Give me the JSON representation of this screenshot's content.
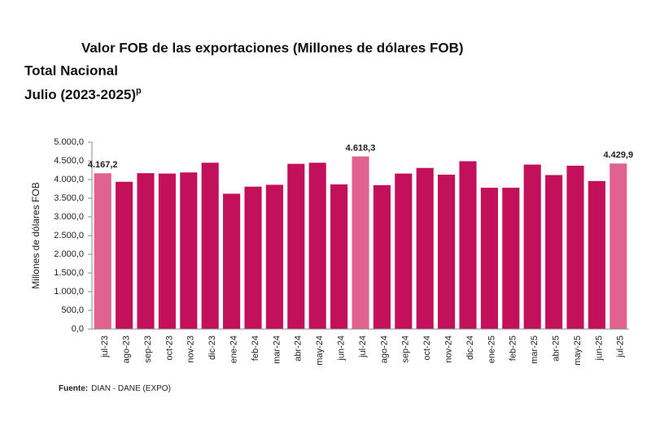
{
  "chart_data": {
    "type": "bar",
    "title": "Valor FOB de las exportaciones (Millones de dólares FOB)",
    "subtitle": "Total Nacional",
    "period": "Julio (2023-2025)",
    "period_note": "p",
    "y_label": "Millones de dólares FOB",
    "source_label": "Fuente:",
    "source": "DIAN - DANE (EXPO)",
    "categories": [
      "jul-23",
      "ago-23",
      "sep-23",
      "oct-23",
      "nov-23",
      "dic-23",
      "ene-24",
      "feb-24",
      "mar-24",
      "abr-24",
      "may-24",
      "jun-24",
      "jul-24",
      "ago-24",
      "sep-24",
      "oct-24",
      "nov-24",
      "dic-24",
      "ene-25",
      "feb-25",
      "mar-25",
      "abr-25",
      "may-25",
      "jun-25",
      "jul-25"
    ],
    "values": [
      4167.2,
      3940,
      4170,
      4160,
      4190,
      4450,
      3620,
      3810,
      3860,
      4420,
      4450,
      3870,
      4618.3,
      3850,
      4160,
      4310,
      4130,
      4490,
      3780,
      3780,
      4400,
      4120,
      4370,
      3960,
      4429.9
    ],
    "value_labels": [
      "4.167,2",
      null,
      null,
      null,
      null,
      null,
      null,
      null,
      null,
      null,
      null,
      null,
      "4.618,3",
      null,
      null,
      null,
      null,
      null,
      null,
      null,
      null,
      null,
      null,
      null,
      "4.429,9"
    ],
    "colors": [
      "#e0628e",
      "#c2105a",
      "#c2105a",
      "#c2105a",
      "#c2105a",
      "#c2105a",
      "#c2105a",
      "#c2105a",
      "#c2105a",
      "#c2105a",
      "#c2105a",
      "#c2105a",
      "#e0628e",
      "#c2105a",
      "#c2105a",
      "#c2105a",
      "#c2105a",
      "#c2105a",
      "#c2105a",
      "#c2105a",
      "#c2105a",
      "#c2105a",
      "#c2105a",
      "#c2105a",
      "#e0628e"
    ],
    "ylim": [
      0,
      5000
    ],
    "yticks": [
      {
        "value": 0,
        "label": "0,0"
      },
      {
        "value": 500,
        "label": "500,0"
      },
      {
        "value": 1000,
        "label": "1.000,0"
      },
      {
        "value": 1500,
        "label": "1.500,0"
      },
      {
        "value": 2000,
        "label": "2.000,0"
      },
      {
        "value": 2500,
        "label": "2.500,0"
      },
      {
        "value": 3000,
        "label": "3.000,0"
      },
      {
        "value": 3500,
        "label": "3.500,0"
      },
      {
        "value": 4000,
        "label": "4.000,0"
      },
      {
        "value": 4500,
        "label": "4.500,0"
      },
      {
        "value": 5000,
        "label": "5.000,0"
      }
    ]
  }
}
